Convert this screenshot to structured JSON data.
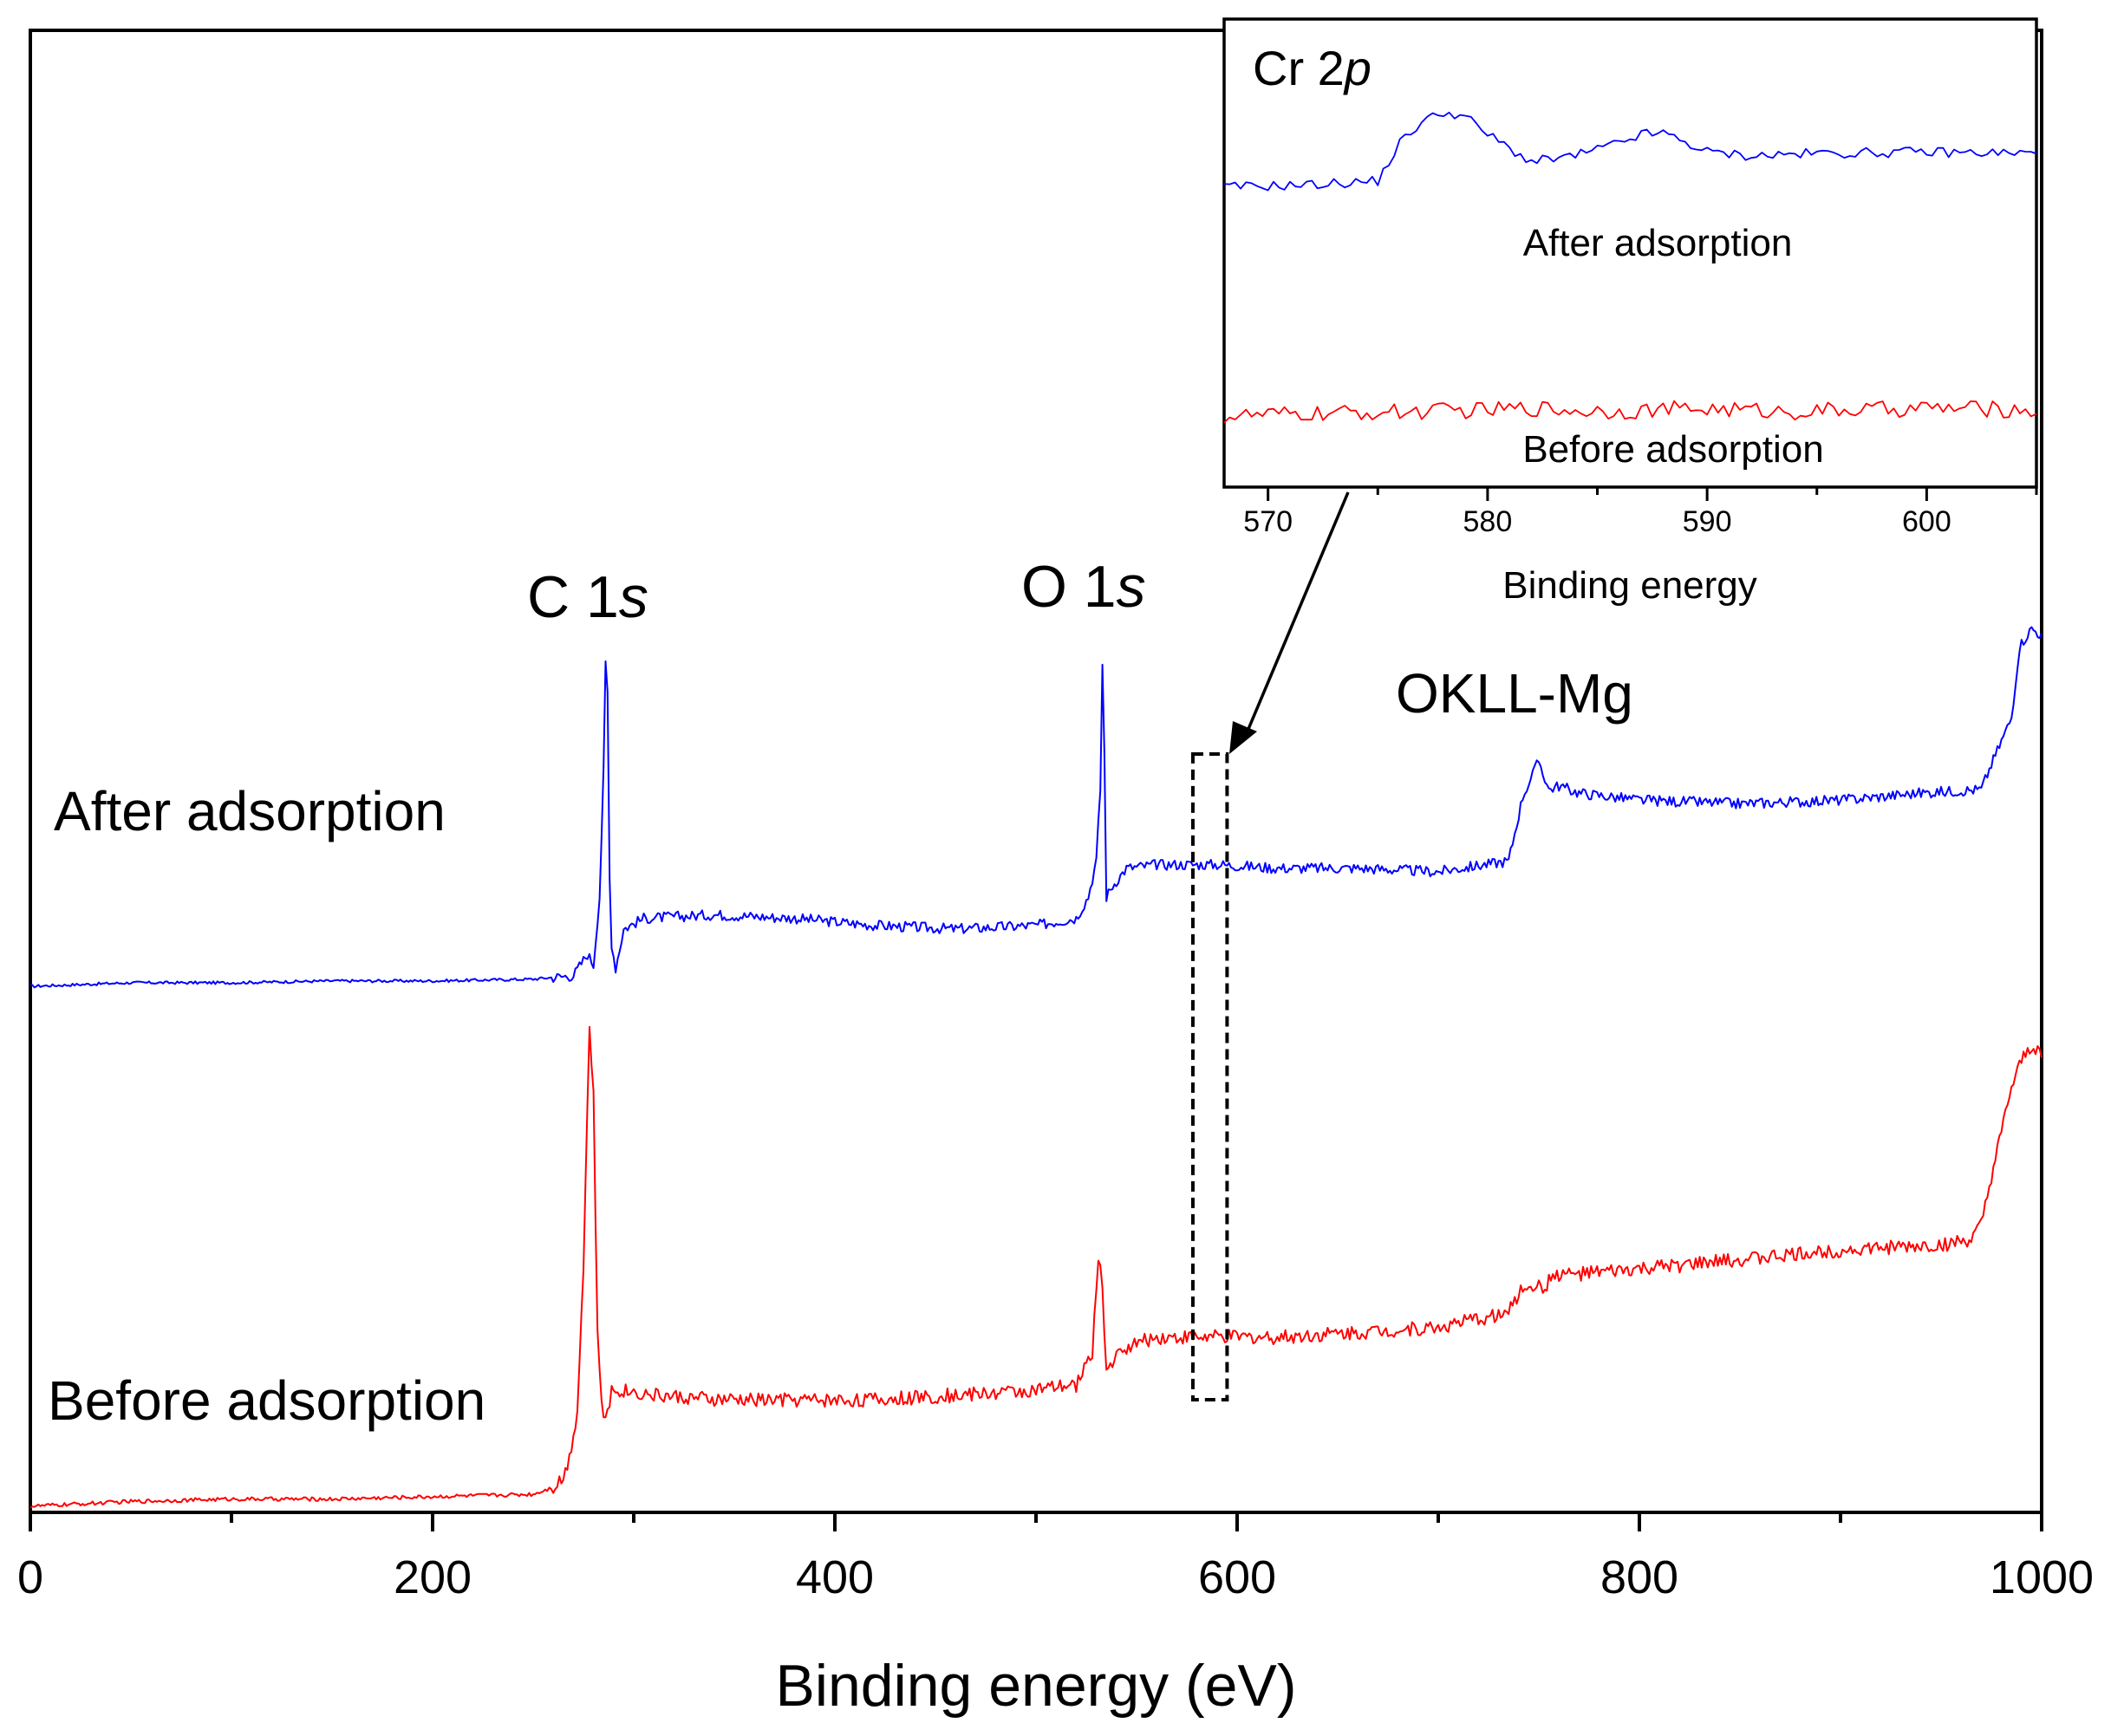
{
  "chart_data": [
    {
      "type": "line",
      "xlabel": "Binding energy (eV)",
      "ylabel": "",
      "xlim": [
        0,
        1000
      ],
      "x_ticks": [
        "0",
        "200",
        "400",
        "600",
        "800",
        "1000"
      ],
      "y_ticks_shown": false,
      "series": [
        {
          "name": "After adsorption",
          "color": "#0000ff",
          "x": [
            0,
            50,
            100,
            150,
            200,
            250,
            270,
            277,
            280,
            283,
            285,
            286,
            287,
            288,
            289,
            291,
            295,
            305,
            340,
            380,
            420,
            460,
            500,
            520,
            526,
            530,
            532,
            533,
            534,
            535,
            538,
            545,
            560,
            590,
            620,
            660,
            700,
            735,
            742,
            750,
            755,
            760,
            770,
            800,
            850,
            900,
            940,
            970,
            975,
            985,
            989,
            995,
            1000
          ],
          "y": [
            0.0,
            0.01,
            0.01,
            0.015,
            0.015,
            0.02,
            0.03,
            0.09,
            0.06,
            0.25,
            0.6,
            0.9,
            0.82,
            0.3,
            0.12,
            0.05,
            0.16,
            0.19,
            0.2,
            0.19,
            0.17,
            0.16,
            0.17,
            0.19,
            0.25,
            0.35,
            0.55,
            0.9,
            0.65,
            0.25,
            0.28,
            0.33,
            0.34,
            0.34,
            0.33,
            0.33,
            0.32,
            0.35,
            0.53,
            0.63,
            0.55,
            0.56,
            0.54,
            0.52,
            0.51,
            0.52,
            0.54,
            0.55,
            0.62,
            0.75,
            0.95,
            1.0,
            0.98
          ]
        },
        {
          "name": "Before adsorption",
          "color": "#ff0000",
          "x": [
            0,
            50,
            100,
            150,
            200,
            250,
            260,
            265,
            268,
            272,
            275,
            278,
            280,
            282,
            284,
            286,
            289,
            295,
            310,
            340,
            380,
            420,
            460,
            500,
            520,
            528,
            531,
            533,
            535,
            538,
            545,
            560,
            590,
            620,
            660,
            700,
            735,
            740,
            745,
            752,
            758,
            770,
            800,
            850,
            900,
            950,
            965,
            970,
            975,
            980,
            984,
            990,
            995,
            1000
          ],
          "y": [
            0.0,
            0.01,
            0.015,
            0.015,
            0.02,
            0.025,
            0.04,
            0.06,
            0.1,
            0.2,
            0.5,
            0.99,
            0.85,
            0.35,
            0.22,
            0.17,
            0.24,
            0.24,
            0.23,
            0.22,
            0.22,
            0.22,
            0.23,
            0.24,
            0.25,
            0.32,
            0.52,
            0.45,
            0.28,
            0.3,
            0.33,
            0.35,
            0.35,
            0.35,
            0.36,
            0.37,
            0.4,
            0.44,
            0.46,
            0.45,
            0.48,
            0.48,
            0.49,
            0.51,
            0.53,
            0.54,
            0.55,
            0.58,
            0.68,
            0.77,
            0.85,
            0.92,
            0.95,
            0.94
          ]
        }
      ],
      "annotations": {
        "c1s": {
          "main": "C 1",
          "italic": "s"
        },
        "o1s": {
          "main": "O 1",
          "italic": "s"
        },
        "okll": "OKLL-Mg",
        "after_label": "After adsorption",
        "before_label": "Before adsorption"
      },
      "highlight_region": {
        "x_range": [
          578,
          595
        ],
        "note": "dashed box zoomed in inset"
      }
    },
    {
      "type": "line",
      "role": "inset",
      "title": {
        "main": "Cr 2",
        "italic": "p"
      },
      "xlabel": "Binding energy",
      "xlim": [
        568,
        605
      ],
      "x_ticks": [
        "570",
        "580",
        "590",
        "600"
      ],
      "series": [
        {
          "name": "After adsorption",
          "color": "#0000ff",
          "x": [
            568,
            572,
            575,
            576,
            577,
            578,
            579,
            580,
            582,
            584,
            586,
            587,
            588,
            589,
            590,
            592,
            595,
            600,
            605
          ],
          "y": [
            0.2,
            0.22,
            0.25,
            0.55,
            0.72,
            0.8,
            0.76,
            0.62,
            0.4,
            0.45,
            0.55,
            0.62,
            0.63,
            0.56,
            0.48,
            0.45,
            0.47,
            0.48,
            0.47
          ]
        },
        {
          "name": "Before adsorption",
          "color": "#ff0000",
          "x": [
            568,
            572,
            575,
            578,
            580,
            582,
            584,
            586,
            588,
            590,
            592,
            594,
            596,
            598,
            600,
            602,
            605
          ],
          "y": [
            0.02,
            0.05,
            0.07,
            0.09,
            0.1,
            0.13,
            0.1,
            0.09,
            0.11,
            0.12,
            0.1,
            0.08,
            0.1,
            0.11,
            0.13,
            0.12,
            0.1
          ],
          "noise": 0.06
        }
      ],
      "annotations": {
        "after_label": "After adsorption",
        "before_label": "Before adsorption"
      }
    }
  ]
}
